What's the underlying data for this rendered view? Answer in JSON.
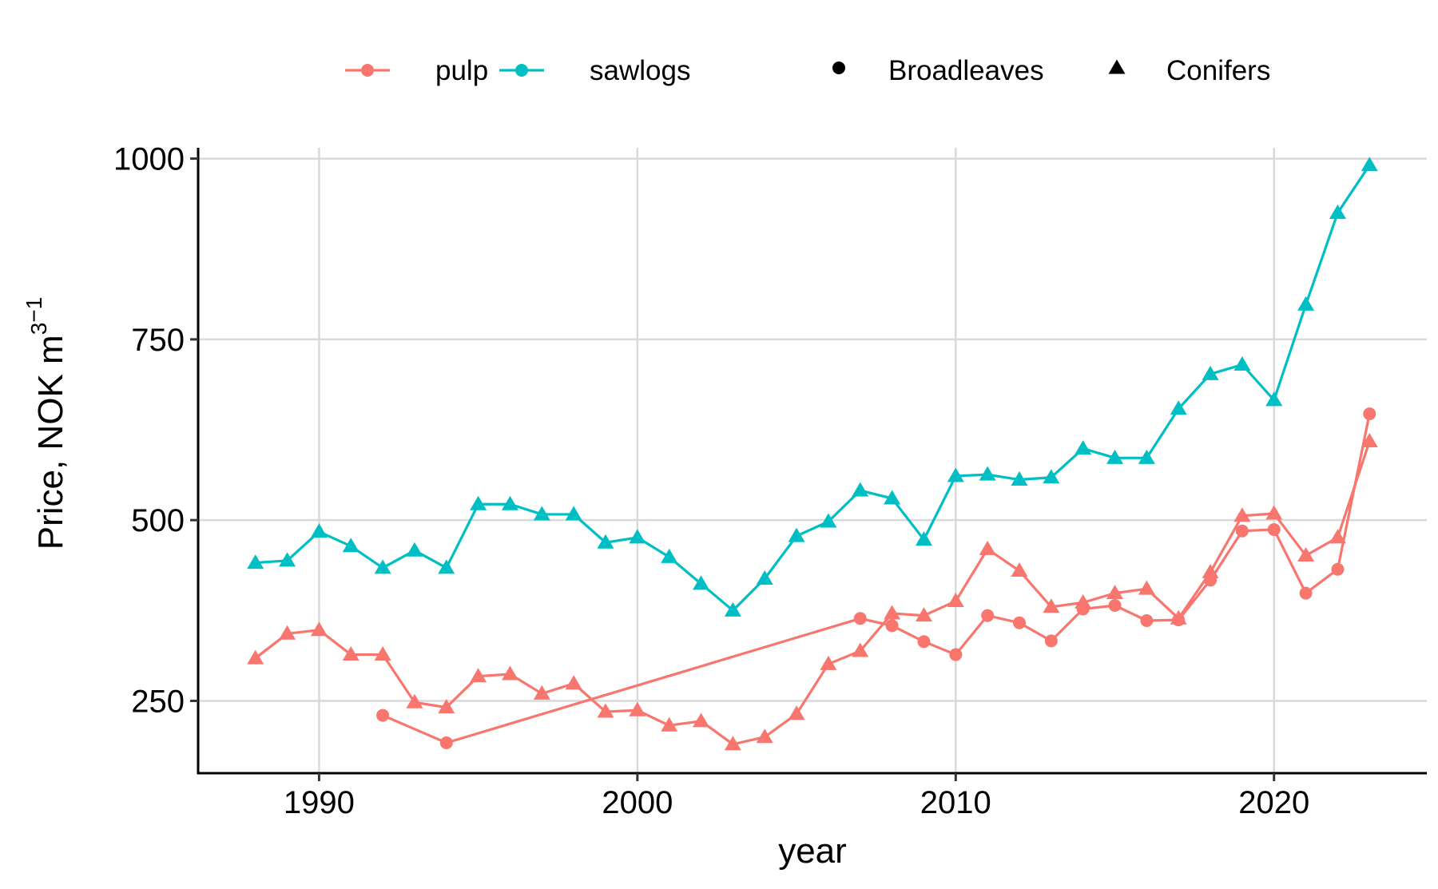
{
  "chart_data": {
    "type": "line",
    "title": "",
    "xlabel": "year",
    "ylabel": "Price, NOK  m",
    "ylabel_sup": "3",
    "ylabel_sup2": "−1",
    "xlim": [
      1986.2,
      2024.8
    ],
    "ylim": [
      150,
      1015
    ],
    "x_ticks": [
      1990,
      2000,
      2010,
      2020
    ],
    "y_ticks": [
      250,
      500,
      750,
      1000
    ],
    "grid": true,
    "legend_placement": "top",
    "legend": {
      "color_entries": [
        {
          "name": "pulp",
          "color": "#F8766D"
        },
        {
          "name": "sawlogs",
          "color": "#00BFC4"
        }
      ],
      "shape_entries": [
        {
          "name": "Broadleaves",
          "shape": "circle"
        },
        {
          "name": "Conifers",
          "shape": "triangle"
        }
      ]
    },
    "series": [
      {
        "category": "pulp",
        "species": "Broadleaves",
        "color": "#F8766D",
        "shape": "circle",
        "x": [
          1992,
          1994,
          2007,
          2008,
          2009,
          2010,
          2011,
          2012,
          2013,
          2014,
          2015,
          2016,
          2017,
          2018,
          2019,
          2020,
          2021,
          2022,
          2023
        ],
        "y": [
          230,
          192,
          364,
          354,
          332,
          314,
          368,
          358,
          333,
          377,
          382,
          361,
          362,
          417,
          485,
          487,
          399,
          432,
          647
        ]
      },
      {
        "category": "pulp",
        "species": "Conifers",
        "color": "#F8766D",
        "shape": "triangle",
        "x": [
          1988,
          1989,
          1990,
          1991,
          1992,
          1993,
          1994,
          1995,
          1996,
          1997,
          1998,
          1999,
          2000,
          2001,
          2002,
          2003,
          2004,
          2005,
          2006,
          2007,
          2008,
          2009,
          2010,
          2011,
          2012,
          2013,
          2014,
          2015,
          2016,
          2017,
          2018,
          2019,
          2020,
          2021,
          2022,
          2023
        ],
        "y": [
          309,
          343,
          348,
          314,
          314,
          248,
          241,
          284,
          287,
          260,
          274,
          235,
          237,
          216,
          222,
          190,
          200,
          232,
          301,
          319,
          371,
          368,
          388,
          460,
          430,
          380,
          386,
          399,
          405,
          364,
          428,
          506,
          509,
          451,
          476,
          609
        ]
      },
      {
        "category": "sawlogs",
        "species": "Conifers",
        "color": "#00BFC4",
        "shape": "triangle",
        "x": [
          1988,
          1989,
          1990,
          1991,
          1992,
          1993,
          1994,
          1995,
          1996,
          1997,
          1998,
          1999,
          2000,
          2001,
          2002,
          2003,
          2004,
          2005,
          2006,
          2007,
          2008,
          2009,
          2010,
          2011,
          2012,
          2013,
          2014,
          2015,
          2016,
          2017,
          2018,
          2019,
          2020,
          2021,
          2022,
          2023
        ],
        "y": [
          441,
          444,
          484,
          464,
          434,
          458,
          434,
          522,
          522,
          508,
          508,
          469,
          476,
          449,
          412,
          375,
          419,
          478,
          498,
          541,
          530,
          473,
          561,
          563,
          556,
          559,
          599,
          586,
          586,
          654,
          702,
          715,
          666,
          798,
          925,
          991
        ]
      }
    ]
  }
}
